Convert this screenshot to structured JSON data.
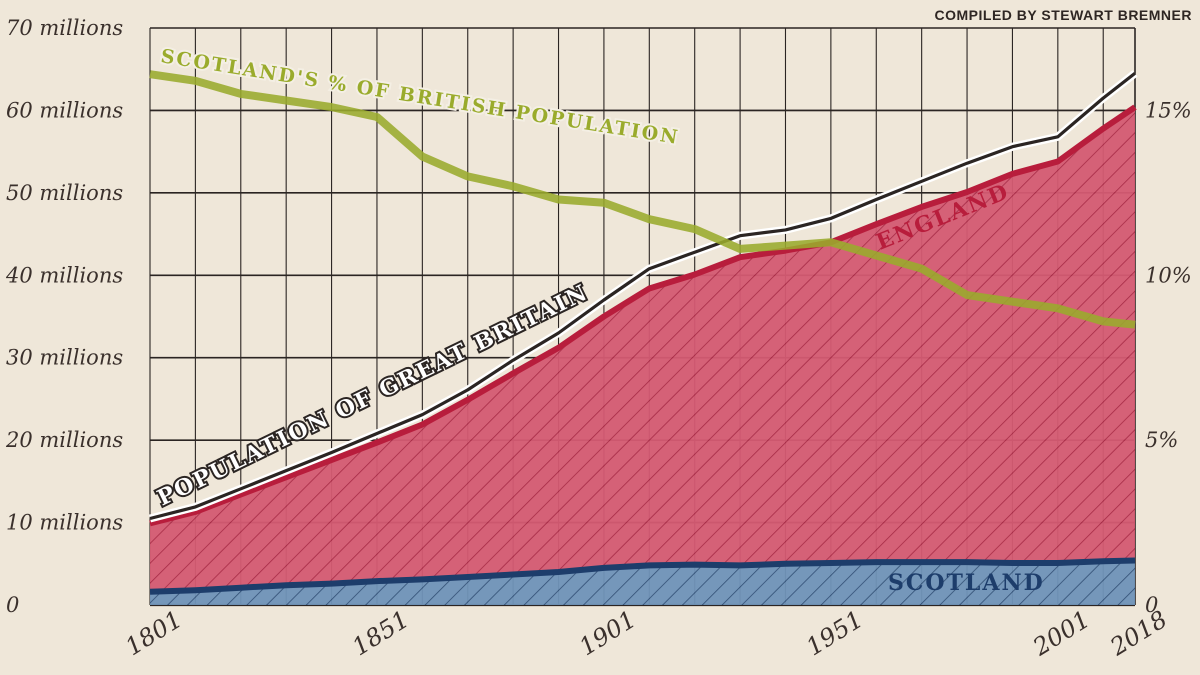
{
  "credit": "COMPILED BY STEWART BREMNER",
  "colors": {
    "background": "#efe7d9",
    "england_fill": "#d45a72",
    "england_line": "#b81d3c",
    "scotland_fill": "#6f93b8",
    "scotland_line": "#1d3d6b",
    "gb_line": "#2b2523",
    "share_line": "#9aab2c",
    "grid": "#2b2523"
  },
  "chart_data": {
    "type": "area",
    "x_ticks": [
      "1801",
      "1851",
      "1901",
      "1951",
      "2001",
      "2018"
    ],
    "y_ticks_left": [
      "0",
      "10 millions",
      "20 millions",
      "30 millions",
      "40 millions",
      "50 millions",
      "60 millions",
      "70 millions"
    ],
    "y_ticks_right": [
      "0",
      "5%",
      "10%",
      "15%"
    ],
    "ylim_left": [
      0,
      70
    ],
    "ylim_right": [
      0,
      17.5
    ],
    "xlim": [
      1801,
      2018
    ],
    "grid": true,
    "series": [
      {
        "name": "SCOTLAND",
        "axis": "left",
        "style": "stacked-area",
        "x": [
          1801,
          1811,
          1821,
          1831,
          1841,
          1851,
          1861,
          1871,
          1881,
          1891,
          1901,
          1911,
          1921,
          1931,
          1941,
          1951,
          1961,
          1971,
          1981,
          1991,
          2001,
          2011,
          2018
        ],
        "values": [
          1.6,
          1.8,
          2.1,
          2.4,
          2.6,
          2.9,
          3.1,
          3.4,
          3.7,
          4.0,
          4.5,
          4.8,
          4.9,
          4.8,
          5.0,
          5.1,
          5.2,
          5.2,
          5.2,
          5.1,
          5.1,
          5.3,
          5.4
        ]
      },
      {
        "name": "ENGLAND",
        "axis": "left",
        "style": "stacked-area",
        "x": [
          1801,
          1811,
          1821,
          1831,
          1841,
          1851,
          1861,
          1871,
          1881,
          1891,
          1901,
          1911,
          1921,
          1931,
          1941,
          1951,
          1961,
          1971,
          1981,
          1991,
          2001,
          2011,
          2018
        ],
        "values": [
          8.3,
          9.5,
          11.3,
          13.1,
          15.0,
          16.8,
          18.8,
          21.5,
          24.4,
          27.2,
          30.5,
          33.6,
          35.2,
          37.4,
          38.0,
          38.9,
          41.0,
          43.1,
          44.9,
          47.2,
          48.7,
          52.5,
          55.0
        ]
      },
      {
        "name": "POPULATION OF GREAT BRITAIN",
        "axis": "left",
        "style": "line",
        "x": [
          1801,
          1811,
          1821,
          1831,
          1841,
          1851,
          1861,
          1871,
          1881,
          1891,
          1901,
          1911,
          1921,
          1931,
          1941,
          1951,
          1961,
          1971,
          1981,
          1991,
          2001,
          2011,
          2018
        ],
        "values": [
          10.5,
          11.9,
          14.1,
          16.3,
          18.5,
          20.8,
          23.1,
          26.1,
          29.7,
          33.0,
          37.0,
          40.8,
          42.8,
          44.8,
          45.5,
          46.9,
          49.2,
          51.4,
          53.6,
          55.6,
          56.8,
          61.5,
          64.5
        ]
      },
      {
        "name": "SCOTLAND'S % OF BRITISH POPULATION",
        "axis": "right",
        "style": "line",
        "x": [
          1801,
          1811,
          1821,
          1831,
          1841,
          1851,
          1861,
          1871,
          1881,
          1891,
          1901,
          1911,
          1921,
          1931,
          1941,
          1951,
          1961,
          1971,
          1981,
          1991,
          2001,
          2011,
          2018
        ],
        "values": [
          16.1,
          15.9,
          15.5,
          15.3,
          15.1,
          14.8,
          13.6,
          13.0,
          12.7,
          12.3,
          12.2,
          11.7,
          11.4,
          10.8,
          10.9,
          11.0,
          10.6,
          10.2,
          9.4,
          9.2,
          9.0,
          8.6,
          8.5
        ]
      }
    ]
  }
}
